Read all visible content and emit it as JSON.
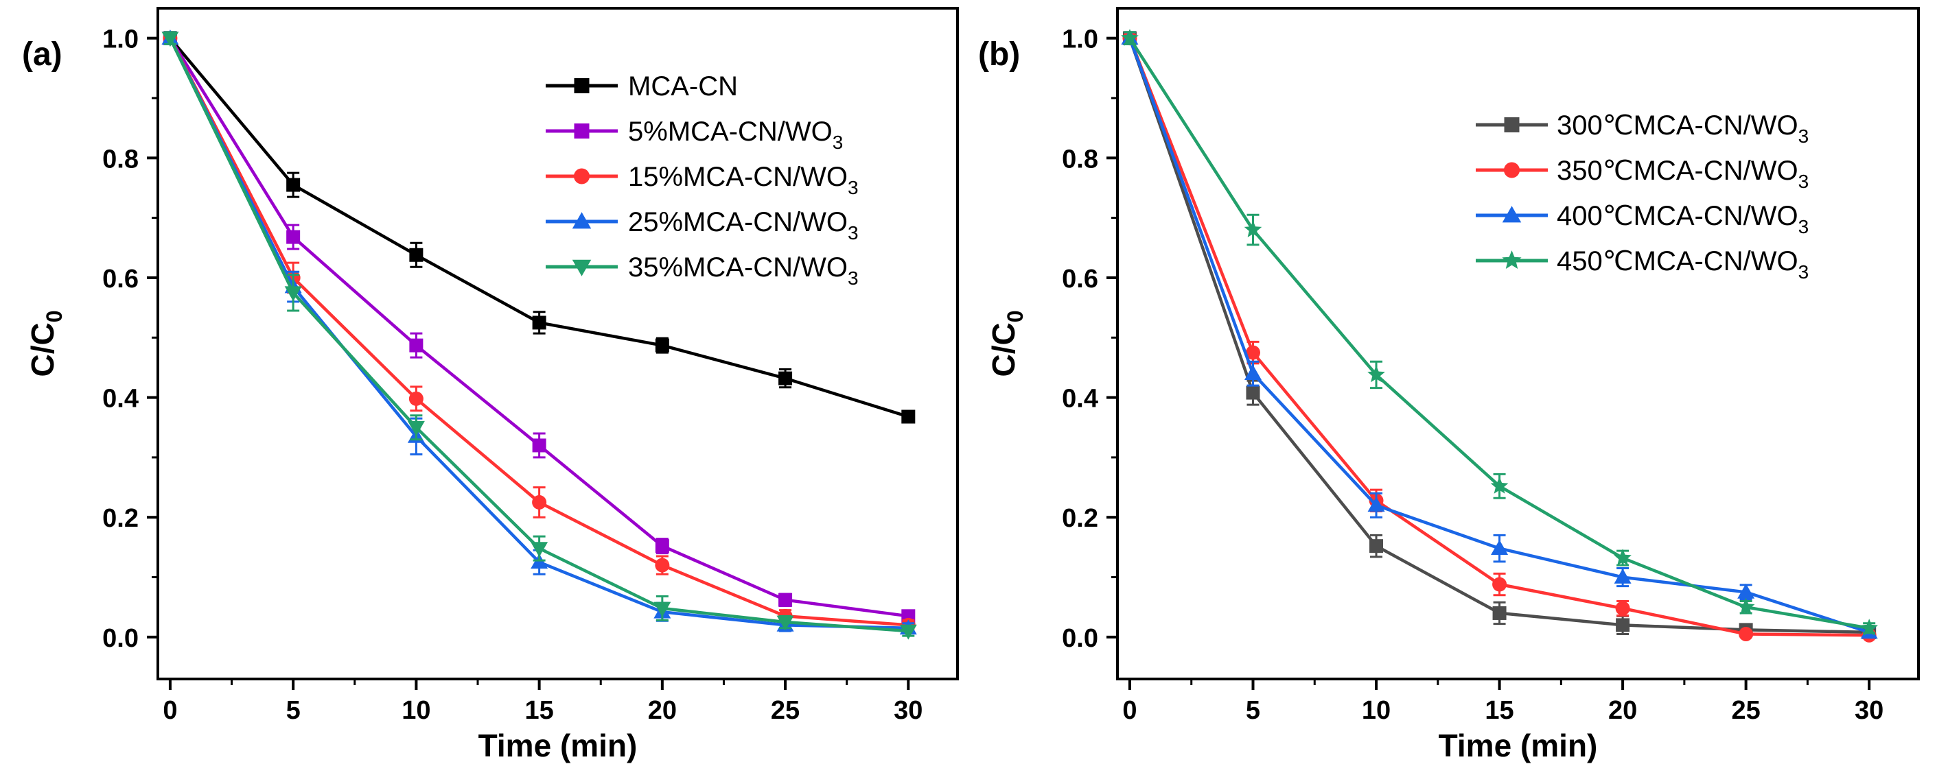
{
  "chart_data": [
    {
      "type": "line",
      "panel_label": "(a)",
      "xlabel": "Time (min)",
      "ylabel": "C/C",
      "ylabel_sub": "0",
      "xlim": [
        -0.5,
        32
      ],
      "ylim": [
        -0.07,
        1.05
      ],
      "xticks": [
        0,
        5,
        10,
        15,
        20,
        25,
        30
      ],
      "yticks": [
        0.0,
        0.2,
        0.4,
        0.6,
        0.8,
        1.0
      ],
      "legend_position": "top-right",
      "series": [
        {
          "name": "MCA-CN",
          "sub": "",
          "color": "#000000",
          "marker": "square",
          "x": [
            0,
            5,
            10,
            15,
            20,
            25,
            30
          ],
          "y": [
            1.0,
            0.755,
            0.638,
            0.525,
            0.487,
            0.432,
            0.368
          ],
          "err": [
            0.01,
            0.02,
            0.02,
            0.018,
            0.012,
            0.015,
            0.008
          ]
        },
        {
          "name": "5%MCA-CN/WO",
          "sub": "3",
          "color": "#9900cc",
          "marker": "square",
          "x": [
            0,
            5,
            10,
            15,
            20,
            25,
            30
          ],
          "y": [
            1.0,
            0.668,
            0.487,
            0.32,
            0.152,
            0.062,
            0.035
          ],
          "err": [
            0.01,
            0.02,
            0.02,
            0.02,
            0.012,
            0.01,
            0.008
          ]
        },
        {
          "name": "15%MCA-CN/WO",
          "sub": "3",
          "color": "#ff3333",
          "marker": "circle",
          "x": [
            0,
            5,
            10,
            15,
            20,
            25,
            30
          ],
          "y": [
            1.0,
            0.6,
            0.398,
            0.225,
            0.12,
            0.035,
            0.02
          ],
          "err": [
            0.01,
            0.025,
            0.02,
            0.025,
            0.015,
            0.01,
            0.008
          ]
        },
        {
          "name": "25%MCA-CN/WO",
          "sub": "3",
          "color": "#1a66e6",
          "marker": "triangle-up",
          "x": [
            0,
            5,
            10,
            15,
            20,
            25,
            30
          ],
          "y": [
            1.0,
            0.585,
            0.335,
            0.125,
            0.042,
            0.02,
            0.015
          ],
          "err": [
            0.01,
            0.025,
            0.03,
            0.02,
            0.015,
            0.01,
            0.008
          ]
        },
        {
          "name": "35%MCA-CN/WO",
          "sub": "3",
          "color": "#22a06b",
          "marker": "triangle-down",
          "x": [
            0,
            5,
            10,
            15,
            20,
            25,
            30
          ],
          "y": [
            1.0,
            0.575,
            0.35,
            0.148,
            0.048,
            0.025,
            0.01
          ],
          "err": [
            0.01,
            0.03,
            0.02,
            0.02,
            0.02,
            0.01,
            0.008
          ]
        }
      ]
    },
    {
      "type": "line",
      "panel_label": "(b)",
      "xlabel": "Time (min)",
      "ylabel": "C/C",
      "ylabel_sub": "0",
      "xlim": [
        -0.5,
        32
      ],
      "ylim": [
        -0.07,
        1.05
      ],
      "xticks": [
        0,
        5,
        10,
        15,
        20,
        25,
        30
      ],
      "yticks": [
        0.0,
        0.2,
        0.4,
        0.6,
        0.8,
        1.0
      ],
      "legend_position": "top-right",
      "series": [
        {
          "name": "300℃MCA-CN/WO",
          "sub": "3",
          "color": "#4d4d4d",
          "marker": "square",
          "x": [
            0,
            5,
            10,
            15,
            20,
            25,
            30
          ],
          "y": [
            1.0,
            0.408,
            0.152,
            0.04,
            0.02,
            0.012,
            0.008
          ],
          "err": [
            0.01,
            0.02,
            0.018,
            0.018,
            0.015,
            0.008,
            0.005
          ]
        },
        {
          "name": "350℃MCA-CN/WO",
          "sub": "3",
          "color": "#ff3333",
          "marker": "circle",
          "x": [
            0,
            5,
            10,
            15,
            20,
            25,
            30
          ],
          "y": [
            1.0,
            0.475,
            0.228,
            0.088,
            0.048,
            0.005,
            0.003
          ],
          "err": [
            0.01,
            0.018,
            0.018,
            0.018,
            0.012,
            0.005,
            0.004
          ]
        },
        {
          "name": "400℃MCA-CN/WO",
          "sub": "3",
          "color": "#1a66e6",
          "marker": "triangle-up",
          "x": [
            0,
            5,
            10,
            15,
            20,
            25,
            30
          ],
          "y": [
            1.0,
            0.44,
            0.22,
            0.148,
            0.1,
            0.075,
            0.008
          ],
          "err": [
            0.01,
            0.02,
            0.02,
            0.022,
            0.015,
            0.012,
            0.008
          ]
        },
        {
          "name": "450℃MCA-CN/WO",
          "sub": "3",
          "color": "#22a06b",
          "marker": "star",
          "x": [
            0,
            5,
            10,
            15,
            20,
            25,
            30
          ],
          "y": [
            1.0,
            0.68,
            0.438,
            0.252,
            0.132,
            0.05,
            0.015
          ],
          "err": [
            0.01,
            0.025,
            0.022,
            0.02,
            0.012,
            0.01,
            0.008
          ]
        }
      ]
    }
  ]
}
